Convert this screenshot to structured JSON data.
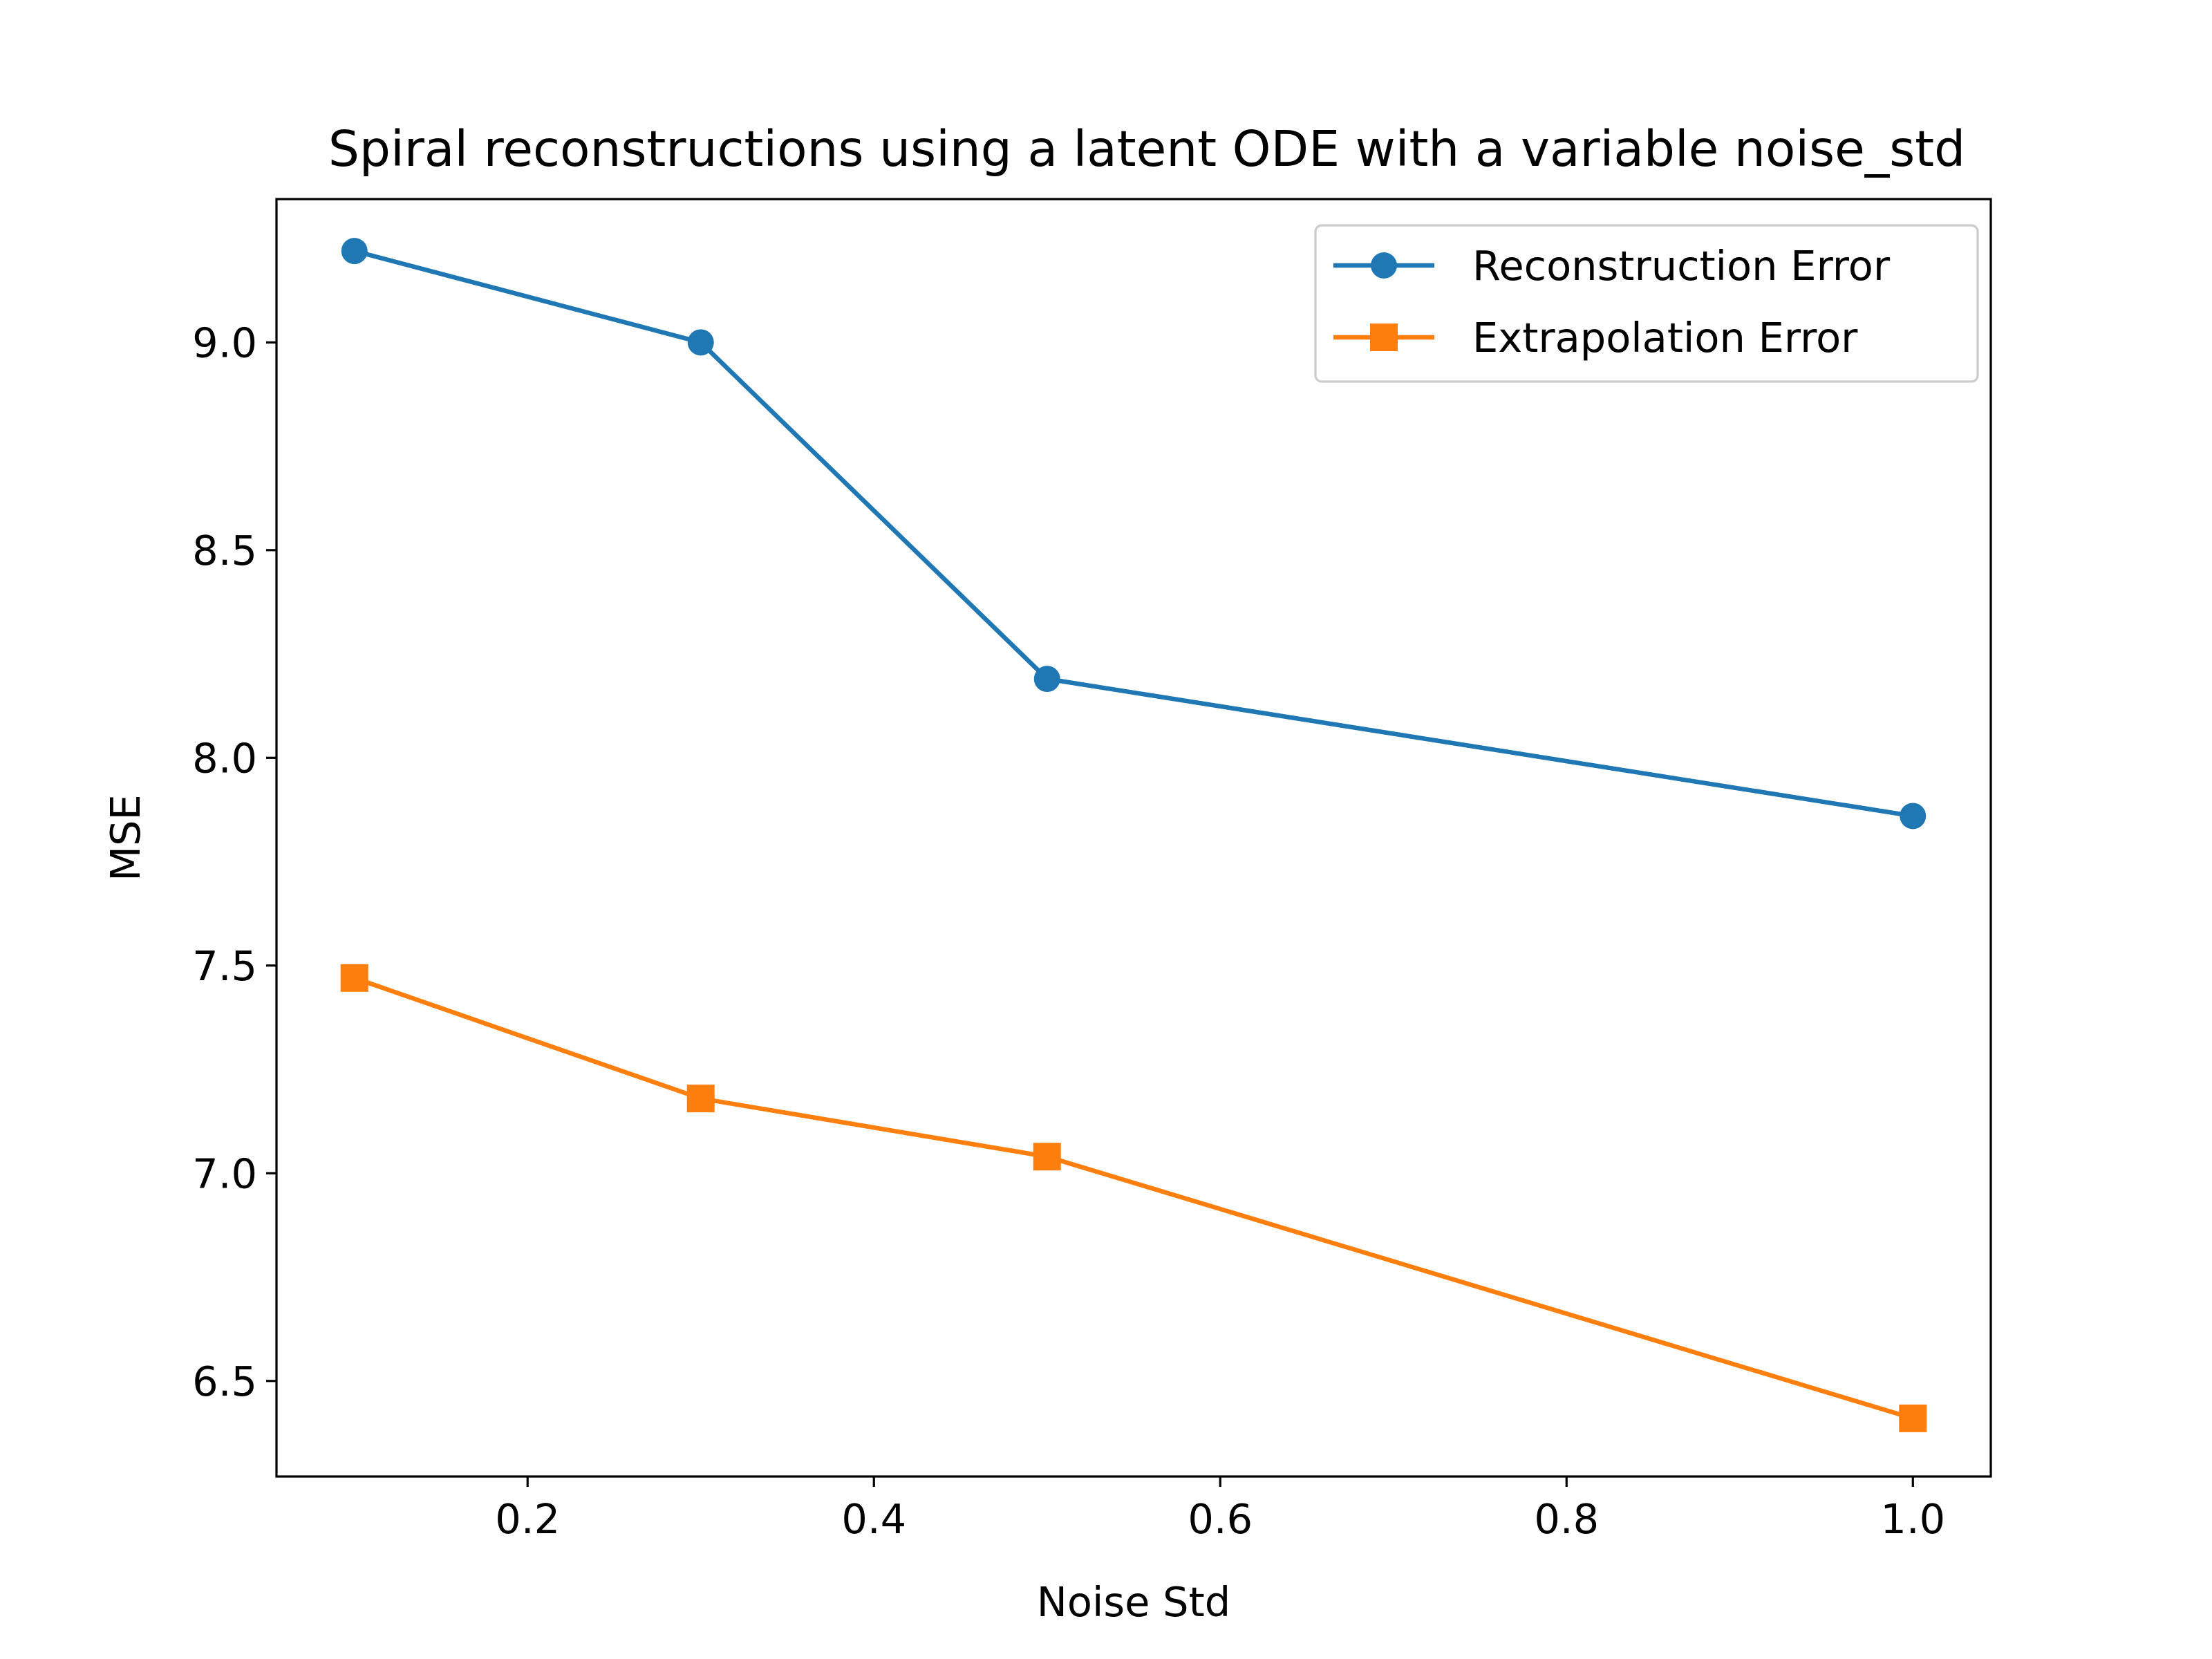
{
  "chart_data": {
    "type": "line",
    "title": "Spiral reconstructions using a latent ODE with a variable noise_std",
    "xlabel": "Noise Std",
    "ylabel": "MSE",
    "x": [
      0.1,
      0.3,
      0.5,
      1.0
    ],
    "xlim": [
      0.055,
      1.045
    ],
    "ylim": [
      6.27,
      9.345
    ],
    "xticks": [
      0.2,
      0.4,
      0.6,
      0.8,
      1.0
    ],
    "xtick_labels": [
      "0.2",
      "0.4",
      "0.6",
      "0.8",
      "1.0"
    ],
    "yticks": [
      6.5,
      7.0,
      7.5,
      8.0,
      8.5,
      9.0
    ],
    "ytick_labels": [
      "6.5",
      "7.0",
      "7.5",
      "8.0",
      "8.5",
      "9.0"
    ],
    "grid": false,
    "legend_position": "top-right",
    "series": [
      {
        "name": "Reconstruction Error",
        "values": [
          9.22,
          9.0,
          8.19,
          7.86
        ],
        "color": "#1f77b4",
        "marker": "circle"
      },
      {
        "name": "Extrapolation Error",
        "values": [
          7.47,
          7.18,
          7.04,
          6.41
        ],
        "color": "#ff7f0e",
        "marker": "square"
      }
    ]
  }
}
